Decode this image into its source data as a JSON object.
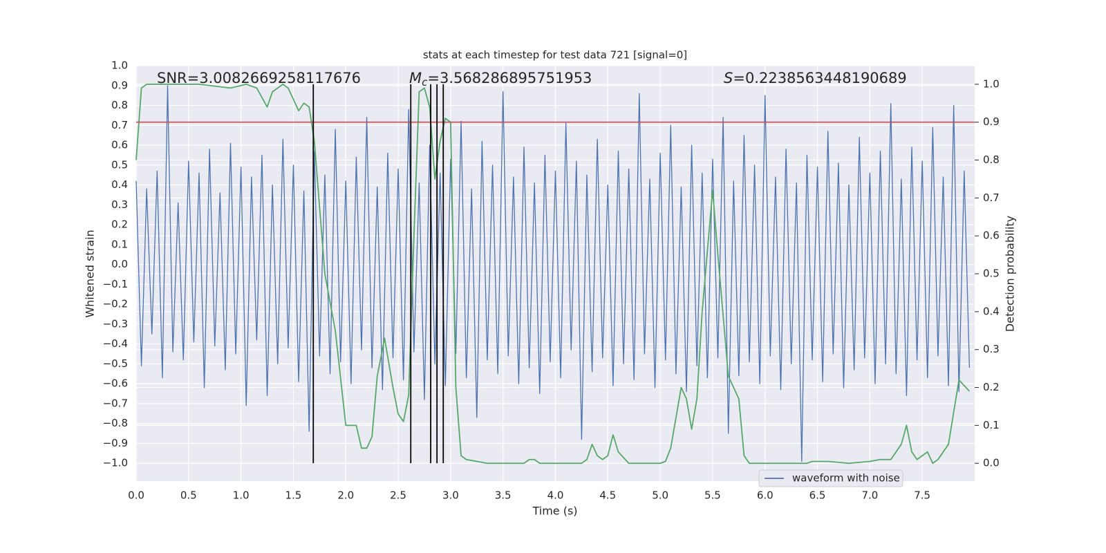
{
  "chart_data": {
    "type": "line",
    "title": "stats at each timestep for test data 721 [signal=0]",
    "annotations": [
      {
        "text": "SNR=3.0082669258117676"
      },
      {
        "symbol": "M",
        "subscript": "c",
        "text": "=3.568286895751953"
      },
      {
        "symbol": "S",
        "text": "=0.2238563448190689"
      }
    ],
    "xlabel": "Time (s)",
    "ylabel": "Whitened strain",
    "y2label": "Detection probability",
    "xlim": [
      0,
      8.0
    ],
    "ylim": [
      -1.09,
      1.0
    ],
    "y2lim": [
      -0.047,
      1.049
    ],
    "xticks": [
      {
        "value": 0,
        "label": "0.0"
      },
      0.5,
      {
        "value": 1,
        "label": "1.0"
      },
      1.5,
      {
        "value": 2,
        "label": "2.0"
      },
      2.5,
      {
        "value": 3,
        "label": "3.0"
      },
      3.5,
      {
        "value": 4,
        "label": "4.0"
      },
      4.5,
      {
        "value": 5,
        "label": "5.0"
      },
      5.5,
      {
        "value": 6,
        "label": "6.0"
      },
      6.5,
      {
        "value": 7,
        "label": "7.0"
      },
      7.5
    ],
    "yticks": [
      {
        "value": -1,
        "label": "−1.0"
      },
      {
        "value": -0.9,
        "label": "−0.9"
      },
      {
        "value": -0.8,
        "label": "−0.8"
      },
      {
        "value": -0.7,
        "label": "−0.7"
      },
      {
        "value": -0.6,
        "label": "−0.6"
      },
      {
        "value": -0.5,
        "label": "−0.5"
      },
      {
        "value": -0.4,
        "label": "−0.4"
      },
      {
        "value": -0.3,
        "label": "−0.3"
      },
      {
        "value": -0.2,
        "label": "−0.2"
      },
      {
        "value": -0.1,
        "label": "−0.1"
      },
      {
        "value": 0,
        "label": "0.0"
      },
      0.1,
      0.2,
      0.3,
      0.4,
      0.5,
      0.6,
      0.7,
      0.8,
      0.9,
      {
        "value": 1,
        "label": "1.0"
      }
    ],
    "y2ticks": [
      {
        "value": 0,
        "label": "0.0"
      },
      0.1,
      0.2,
      0.3,
      0.4,
      0.5,
      0.6,
      0.7,
      0.8,
      0.9,
      {
        "value": 1,
        "label": "1.0"
      }
    ],
    "grid": true,
    "legend": "lower right",
    "threshold": 0.9,
    "threshold_color": "#c44e52",
    "vlines": [
      1.69,
      2.62,
      2.81,
      2.87,
      2.93
    ],
    "vline_color": "#000000",
    "series": [
      {
        "name": "waveform with noise",
        "color": "#4c72b0",
        "x": [
          0,
          0.05,
          0.1,
          0.15,
          0.2,
          0.25,
          0.3,
          0.35,
          0.4,
          0.45,
          0.5,
          0.55,
          0.6,
          0.65,
          0.7,
          0.75,
          0.8,
          0.85,
          0.9,
          0.95,
          1,
          1.05,
          1.1,
          1.15,
          1.2,
          1.25,
          1.3,
          1.35,
          1.4,
          1.45,
          1.5,
          1.55,
          1.6,
          1.65,
          1.7,
          1.75,
          1.8,
          1.85,
          1.9,
          1.95,
          2,
          2.05,
          2.1,
          2.15,
          2.2,
          2.25,
          2.3,
          2.35,
          2.4,
          2.45,
          2.5,
          2.55,
          2.6,
          2.65,
          2.7,
          2.75,
          2.8,
          2.85,
          2.9,
          2.95,
          3,
          3.05,
          3.1,
          3.15,
          3.2,
          3.25,
          3.3,
          3.35,
          3.4,
          3.45,
          3.5,
          3.55,
          3.6,
          3.65,
          3.7,
          3.75,
          3.8,
          3.85,
          3.9,
          3.95,
          4,
          4.05,
          4.1,
          4.15,
          4.2,
          4.25,
          4.3,
          4.35,
          4.4,
          4.45,
          4.5,
          4.55,
          4.6,
          4.65,
          4.7,
          4.75,
          4.8,
          4.85,
          4.9,
          4.95,
          5,
          5.05,
          5.1,
          5.15,
          5.2,
          5.25,
          5.3,
          5.35,
          5.4,
          5.45,
          5.5,
          5.55,
          5.6,
          5.65,
          5.7,
          5.75,
          5.8,
          5.85,
          5.9,
          5.95,
          6,
          6.05,
          6.1,
          6.15,
          6.2,
          6.25,
          6.3,
          6.35,
          6.4,
          6.45,
          6.5,
          6.55,
          6.6,
          6.65,
          6.7,
          6.75,
          6.8,
          6.85,
          6.9,
          6.95,
          7,
          7.05,
          7.1,
          7.15,
          7.2,
          7.25,
          7.3,
          7.35,
          7.4,
          7.45,
          7.5,
          7.55,
          7.6,
          7.65,
          7.7,
          7.75,
          7.8,
          7.85,
          7.9,
          7.95
        ],
        "values": [
          0.42,
          -0.51,
          0.38,
          -0.35,
          0.47,
          -0.57,
          0.9,
          -0.44,
          0.31,
          -0.48,
          0.52,
          -0.39,
          0.46,
          -0.62,
          0.58,
          -0.41,
          0.36,
          -0.53,
          0.61,
          -0.45,
          0.49,
          -0.71,
          0.44,
          -0.38,
          0.55,
          -0.66,
          0.4,
          -0.5,
          0.63,
          -0.42,
          0.5,
          -0.59,
          0.37,
          -0.84,
          0.57,
          -0.46,
          0.45,
          -0.55,
          0.68,
          -0.49,
          0.42,
          -0.6,
          0.54,
          -0.43,
          0.74,
          -0.52,
          0.39,
          -0.63,
          0.56,
          -0.47,
          0.48,
          -0.58,
          0.78,
          -0.44,
          0.41,
          -0.68,
          0.6,
          -0.5,
          0.46,
          -0.61,
          0.53,
          -0.45,
          0.72,
          -0.57,
          0.38,
          -0.77,
          0.62,
          -0.48,
          0.5,
          -0.55,
          0.87,
          -0.46,
          0.44,
          -0.6,
          0.59,
          -0.52,
          0.41,
          -0.65,
          0.55,
          -0.49,
          0.47,
          -0.57,
          0.71,
          -0.43,
          0.52,
          -0.88,
          0.45,
          -0.54,
          0.63,
          -0.47,
          0.4,
          -0.61,
          0.57,
          -0.5,
          0.48,
          -0.58,
          0.86,
          -0.45,
          0.43,
          -0.62,
          0.56,
          -0.48,
          0.7,
          -0.55,
          0.39,
          -0.64,
          0.6,
          -0.51,
          0.46,
          -0.57,
          0.53,
          -0.47,
          0.74,
          -0.85,
          0.42,
          -0.56,
          0.65,
          -0.49,
          0.5,
          -0.6,
          0.85,
          -0.46,
          0.44,
          -0.63,
          0.58,
          -0.5,
          0.41,
          -0.99,
          0.55,
          -0.48,
          0.49,
          -0.59,
          0.67,
          -0.45,
          0.51,
          -0.62,
          0.4,
          -0.53,
          0.64,
          -0.47,
          0.46,
          -0.6,
          0.57,
          -0.5,
          0.81,
          -0.55,
          0.43,
          -0.66,
          0.59,
          -0.48,
          0.52,
          -0.57,
          0.69,
          -0.46,
          0.44,
          -0.61,
          0.8,
          -0.64,
          0.47,
          -0.52
        ]
      },
      {
        "color": "#55a868",
        "axis": "y2",
        "x": [
          0,
          0.05,
          0.1,
          0.3,
          0.6,
          0.9,
          1.05,
          1.15,
          1.25,
          1.3,
          1.4,
          1.45,
          1.5,
          1.55,
          1.6,
          1.65,
          1.7,
          1.8,
          1.9,
          2,
          2.1,
          2.15,
          2.2,
          2.25,
          2.3,
          2.37,
          2.45,
          2.5,
          2.55,
          2.6,
          2.65,
          2.7,
          2.75,
          2.8,
          2.85,
          2.9,
          2.95,
          3,
          3.05,
          3.1,
          3.15,
          3.25,
          3.35,
          3.5,
          3.7,
          3.75,
          3.8,
          3.85,
          4.0,
          4.25,
          4.3,
          4.35,
          4.4,
          4.45,
          4.5,
          4.55,
          4.6,
          4.7,
          4.8,
          5.0,
          5.05,
          5.1,
          5.2,
          5.25,
          5.3,
          5.35,
          5.4,
          5.5,
          5.55,
          5.65,
          5.75,
          5.8,
          5.85,
          6.1,
          6.4,
          6.45,
          6.6,
          6.8,
          7.0,
          7.1,
          7.2,
          7.3,
          7.35,
          7.4,
          7.45,
          7.55,
          7.6,
          7.65,
          7.75,
          7.85,
          7.95
        ],
        "values": [
          0.8,
          0.99,
          1.0,
          1.0,
          1.0,
          0.99,
          1.0,
          0.99,
          0.94,
          0.98,
          1.0,
          0.99,
          0.96,
          0.93,
          0.95,
          0.94,
          0.85,
          0.5,
          0.35,
          0.1,
          0.1,
          0.04,
          0.04,
          0.07,
          0.23,
          0.33,
          0.2,
          0.13,
          0.11,
          0.18,
          0.6,
          0.98,
          0.99,
          0.94,
          0.75,
          0.85,
          0.91,
          0.9,
          0.2,
          0.02,
          0.01,
          0.005,
          0.0,
          0.0,
          0.0,
          0.01,
          0.01,
          0.0,
          0.0,
          0.0,
          0.01,
          0.05,
          0.02,
          0.01,
          0.02,
          0.075,
          0.03,
          0.0,
          0.0,
          0.0,
          0.005,
          0.04,
          0.2,
          0.17,
          0.09,
          0.17,
          0.4,
          0.72,
          0.55,
          0.23,
          0.17,
          0.02,
          0.0,
          0.0,
          0.0,
          0.005,
          0.005,
          0.0,
          0.005,
          0.01,
          0.01,
          0.05,
          0.1,
          0.03,
          0.01,
          0.03,
          0.0,
          0.01,
          0.05,
          0.22,
          0.19
        ]
      }
    ]
  }
}
